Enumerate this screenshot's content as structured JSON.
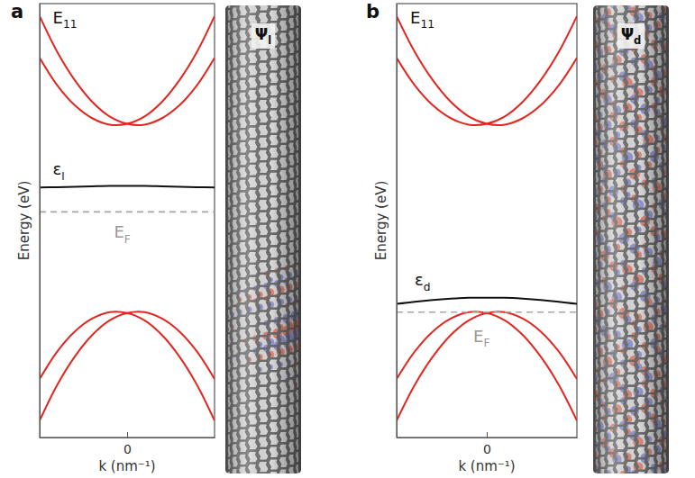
{
  "chart_data": [
    {
      "type": "line",
      "panel": "a",
      "ylabel": "Energy (eV)",
      "xlabel": "k (nm⁻¹)",
      "x": [
        -1,
        -0.8,
        -0.6,
        -0.4,
        -0.2,
        0,
        0.2,
        0.4,
        0.6,
        0.8,
        1
      ],
      "xlim": [
        -1,
        1
      ],
      "xticks": [
        0
      ],
      "ylim": [
        0,
        10
      ],
      "tick_labels": "x",
      "series": [
        {
          "color": "#e3261f",
          "values": [
            8.75,
            8.12,
            7.66,
            7.36,
            7.21,
            7.23,
            7.4,
            7.74,
            8.24,
            8.89,
            9.71
          ]
        },
        {
          "color": "#e3261f",
          "values": [
            9.71,
            8.89,
            8.24,
            7.74,
            7.4,
            7.23,
            7.21,
            7.36,
            7.66,
            8.12,
            8.75
          ]
        },
        {
          "color": "#e3261f",
          "values": [
            1.35,
            1.98,
            2.44,
            2.74,
            2.89,
            2.87,
            2.7,
            2.36,
            1.86,
            1.21,
            0.39
          ]
        },
        {
          "color": "#e3261f",
          "values": [
            0.39,
            1.21,
            1.86,
            2.36,
            2.7,
            2.87,
            2.89,
            2.74,
            2.44,
            1.98,
            1.35
          ]
        },
        {
          "color": "#111111",
          "values": [
            5.76,
            5.77,
            5.78,
            5.79,
            5.8,
            5.8,
            5.8,
            5.79,
            5.78,
            5.77,
            5.76
          ]
        },
        {
          "color": "#a6a6a6",
          "line_style": "dashed",
          "values": [
            5.2,
            5.2,
            5.2,
            5.2,
            5.2,
            5.2,
            5.2,
            5.2,
            5.2,
            5.2,
            5.2
          ]
        }
      ],
      "annotations": [
        {
          "text": "E11",
          "x": -0.85,
          "y": 9.55,
          "color": "#111111"
        },
        {
          "text": "εl",
          "x": -0.85,
          "y": 6.05,
          "color": "#111111"
        },
        {
          "text": "EF",
          "x": -0.15,
          "y": 4.6,
          "color": "#999999"
        }
      ],
      "wavefunction_label": "Ψl"
    },
    {
      "type": "line",
      "panel": "b",
      "ylabel": "Energy (eV)",
      "xlabel": "k (nm⁻¹)",
      "x": [
        -1,
        -0.8,
        -0.6,
        -0.4,
        -0.2,
        0,
        0.2,
        0.4,
        0.6,
        0.8,
        1
      ],
      "xlim": [
        -1,
        1
      ],
      "xticks": [
        0
      ],
      "ylim": [
        0,
        10
      ],
      "tick_labels": "x",
      "series": [
        {
          "color": "#e3261f",
          "values": [
            8.75,
            8.12,
            7.66,
            7.36,
            7.21,
            7.23,
            7.4,
            7.74,
            8.24,
            8.89,
            9.71
          ]
        },
        {
          "color": "#e3261f",
          "values": [
            9.71,
            8.89,
            8.24,
            7.74,
            7.4,
            7.23,
            7.21,
            7.36,
            7.66,
            8.12,
            8.75
          ]
        },
        {
          "color": "#e3261f",
          "values": [
            1.35,
            1.98,
            2.44,
            2.74,
            2.89,
            2.87,
            2.7,
            2.36,
            1.86,
            1.21,
            0.39
          ]
        },
        {
          "color": "#e3261f",
          "values": [
            0.39,
            1.21,
            1.86,
            2.36,
            2.7,
            2.87,
            2.89,
            2.74,
            2.44,
            1.98,
            1.35
          ]
        },
        {
          "color": "#111111",
          "values": [
            3.08,
            3.13,
            3.17,
            3.2,
            3.22,
            3.22,
            3.22,
            3.2,
            3.17,
            3.13,
            3.08
          ]
        },
        {
          "color": "#a6a6a6",
          "line_style": "dashed",
          "values": [
            2.89,
            2.89,
            2.89,
            2.89,
            2.89,
            2.89,
            2.89,
            2.89,
            2.89,
            2.89,
            2.89
          ]
        }
      ],
      "annotations": [
        {
          "text": "E11",
          "x": -0.85,
          "y": 9.55,
          "color": "#111111"
        },
        {
          "text": "εd",
          "x": -0.8,
          "y": 3.5,
          "color": "#111111"
        },
        {
          "text": "EF",
          "x": -0.15,
          "y": 2.2,
          "color": "#999999"
        }
      ],
      "wavefunction_label": "Ψd"
    }
  ]
}
